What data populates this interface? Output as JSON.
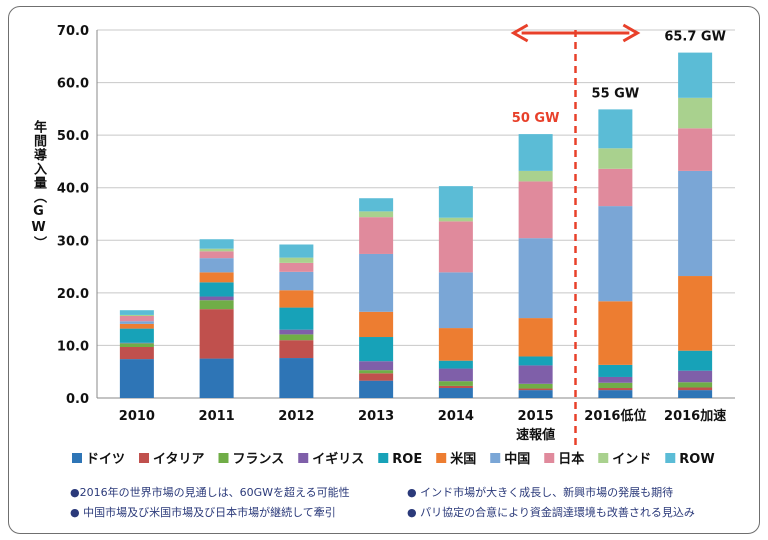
{
  "chart_data": {
    "type": "bar",
    "stacked": true,
    "ylabel": "年間導入量（GW）",
    "ylim": [
      0,
      70
    ],
    "yticks": [
      "0.0",
      "10.0",
      "20.0",
      "30.0",
      "40.0",
      "50.0",
      "60.0",
      "70.0"
    ],
    "categories": [
      "2010",
      "2011",
      "2012",
      "2013",
      "2014",
      "2015\n速報値",
      "2016低位",
      "2016加速"
    ],
    "series": [
      {
        "name": "ドイツ",
        "color": "#2e75b6",
        "values": [
          7.4,
          7.5,
          7.6,
          3.3,
          1.9,
          1.5,
          1.5,
          1.5
        ]
      },
      {
        "name": "イタリア",
        "color": "#c0504d",
        "values": [
          2.3,
          9.4,
          3.4,
          1.4,
          0.4,
          0.3,
          0.4,
          0.5
        ]
      },
      {
        "name": "フランス",
        "color": "#70ad47",
        "values": [
          0.7,
          1.7,
          1.1,
          0.6,
          0.9,
          0.9,
          1.0,
          1.0
        ]
      },
      {
        "name": "イギリス",
        "color": "#7f5fa9",
        "values": [
          0.1,
          0.7,
          0.9,
          1.7,
          2.4,
          3.5,
          1.1,
          2.2
        ]
      },
      {
        "name": "ROE",
        "color": "#17a2b8",
        "values": [
          2.7,
          2.7,
          4.2,
          4.6,
          1.5,
          1.7,
          2.3,
          3.8
        ]
      },
      {
        "name": "米国",
        "color": "#ed7d31",
        "values": [
          0.9,
          1.9,
          3.3,
          4.8,
          6.2,
          7.3,
          12.1,
          14.2
        ]
      },
      {
        "name": "中国",
        "color": "#7aa6d6",
        "values": [
          0.5,
          2.7,
          3.5,
          11.0,
          10.6,
          15.2,
          18.1,
          20.0
        ]
      },
      {
        "name": "日本",
        "color": "#e08a9c",
        "values": [
          1.0,
          1.3,
          1.7,
          7.0,
          9.7,
          10.8,
          7.1,
          8.1
        ]
      },
      {
        "name": "インド",
        "color": "#a9d18e",
        "values": [
          0.2,
          0.5,
          1.0,
          1.1,
          0.7,
          2.0,
          3.9,
          5.8
        ]
      },
      {
        "name": "ROW",
        "color": "#5bbcd6",
        "values": [
          0.9,
          1.8,
          2.5,
          2.5,
          6.0,
          7.0,
          7.4,
          8.6
        ]
      }
    ],
    "annotations": [
      {
        "category": 5,
        "text": "50 GW",
        "color": "#e8402a"
      },
      {
        "category": 6,
        "text": "55 GW",
        "color": "#111111"
      },
      {
        "category": 7,
        "text": "65.7 GW",
        "color": "#111111"
      }
    ],
    "divider_after_category": 5,
    "arrow_color": "#e8402a",
    "grid": true,
    "legend_position": "bottom"
  },
  "notes": [
    "●2016年の世界市場の見通しは、60GWを超える可能性",
    "● インド市場が大きく成長し、新興市場の発展も期待",
    "● 中国市場及び米国市場及び日本市場が継続して牽引",
    "● パリ協定の合意により資金調達環境も改善される見込み"
  ]
}
